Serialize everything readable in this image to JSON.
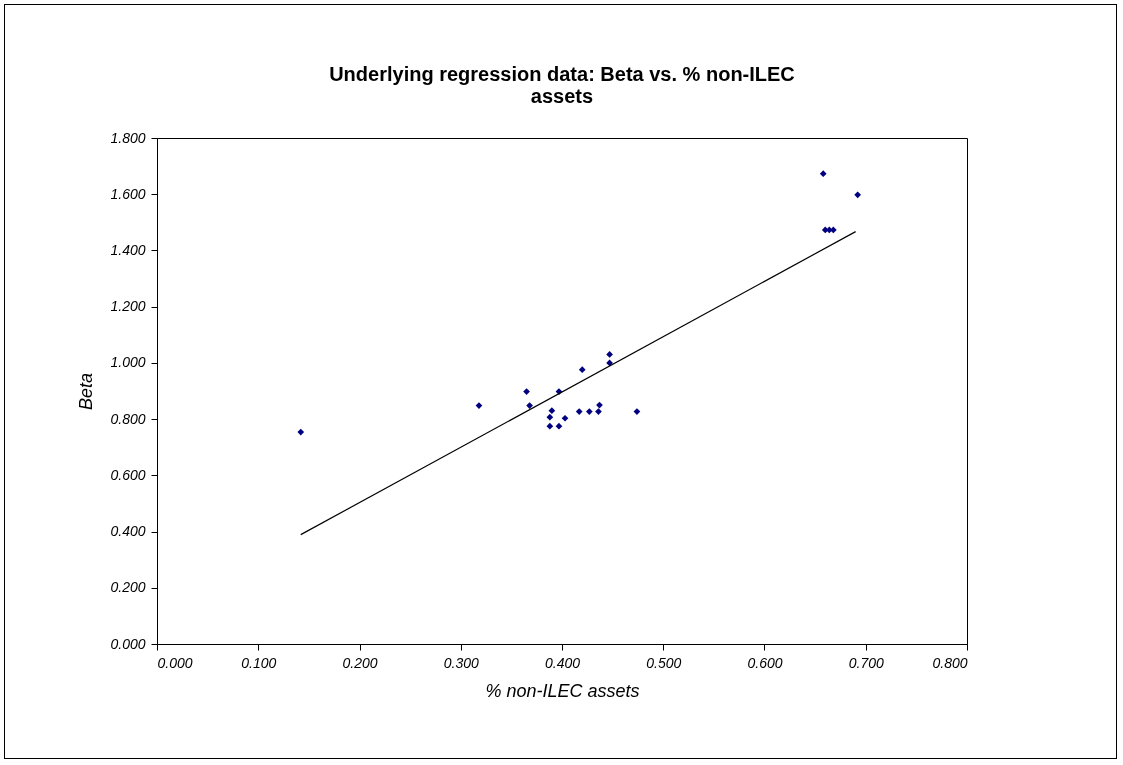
{
  "chart_data": {
    "type": "scatter",
    "title": "Underlying regression data: Beta vs. % non-ILEC assets",
    "xlabel": "% non-ILEC assets",
    "ylabel": "Beta",
    "grid": false,
    "xlim": [
      0,
      0.8
    ],
    "xticks": [
      {
        "value": 0,
        "label": "0.000"
      },
      {
        "value": 0.1,
        "label": "0.100"
      },
      {
        "value": 0.2,
        "label": "0.200"
      },
      {
        "value": 0.3,
        "label": "0.300"
      },
      {
        "value": 0.4,
        "label": "0.400"
      },
      {
        "value": 0.5,
        "label": "0.500"
      },
      {
        "value": 0.6,
        "label": "0.600"
      },
      {
        "value": 0.7,
        "label": "0.700"
      },
      {
        "value": 0.8,
        "label": "0.800"
      }
    ],
    "ylim": [
      0,
      1.8
    ],
    "yticks": [
      {
        "value": 0,
        "label": "0.000"
      },
      {
        "value": 0.2,
        "label": "0.200"
      },
      {
        "value": 0.4,
        "label": "0.400"
      },
      {
        "value": 0.6,
        "label": "0.600"
      },
      {
        "value": 0.8,
        "label": "0.800"
      },
      {
        "value": 1.0,
        "label": "1.000"
      },
      {
        "value": 1.2,
        "label": "1.200"
      },
      {
        "value": 1.4,
        "label": "1.400"
      },
      {
        "value": 1.6,
        "label": "1.600"
      },
      {
        "value": 1.8,
        "label": "1.800"
      }
    ],
    "series": [
      {
        "marker": "diamond",
        "color": "#000080",
        "x": [
          0.142,
          0.318,
          0.365,
          0.368,
          0.397,
          0.42,
          0.39,
          0.388,
          0.388,
          0.397,
          0.403,
          0.417,
          0.427,
          0.436,
          0.437,
          0.474,
          0.447,
          0.447,
          0.658,
          0.692,
          0.66,
          0.664,
          0.668
        ],
        "values": [
          0.754,
          0.848,
          0.898,
          0.848,
          0.898,
          0.976,
          0.83,
          0.807,
          0.775,
          0.775,
          0.803,
          0.827,
          0.827,
          0.827,
          0.85,
          0.827,
          1.03,
          1.0,
          1.673,
          1.598,
          1.473,
          1.473,
          1.473
        ]
      },
      {
        "type": "line",
        "color": "#000000",
        "line_style": "solid",
        "x": [
          0.142,
          0.69
        ],
        "values": [
          0.389,
          1.467
        ]
      }
    ]
  }
}
